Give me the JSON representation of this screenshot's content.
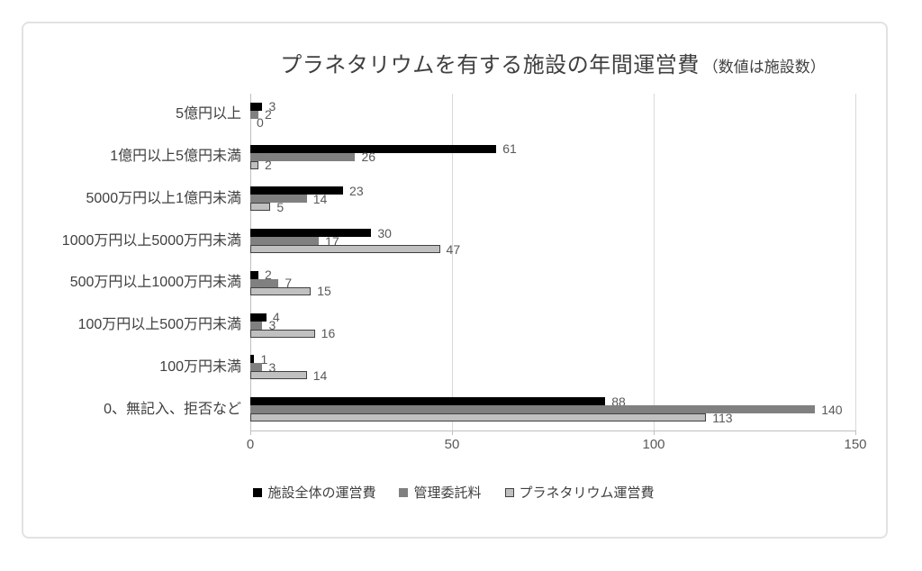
{
  "chart_data": {
    "type": "bar",
    "orientation": "horizontal",
    "title": "プラネタリウムを有する施設の年間運営費",
    "title_suffix": "（数値は施設数）",
    "categories": [
      "5億円以上",
      "1億円以上5億円未満",
      "5000万円以上1億円未満",
      "1000万円以上5000万円未満",
      "500万円以上1000万円未満",
      "100万円以上500万円未満",
      "100万円未満",
      "0、無記入、拒否など"
    ],
    "series": [
      {
        "name": "施設全体の運営費",
        "color": "#000000",
        "border": "#000000",
        "values": [
          3,
          61,
          23,
          30,
          2,
          4,
          1,
          88
        ]
      },
      {
        "name": "管理委託料",
        "color": "#808080",
        "border": "#808080",
        "values": [
          2,
          26,
          14,
          17,
          7,
          3,
          3,
          140
        ]
      },
      {
        "name": "プラネタリウム運営費",
        "color": "#c0c0c0",
        "border": "#404040",
        "values": [
          0,
          2,
          5,
          47,
          15,
          16,
          14,
          113
        ]
      }
    ],
    "xlim": [
      0,
      150
    ],
    "xticks": [
      0,
      50,
      100,
      150
    ],
    "grid": true,
    "data_labels_shown": true,
    "legend_position": "bottom",
    "colors": {
      "title": "#404040",
      "data_label": "#595959",
      "tick_label": "#595959",
      "category_label": "#404040",
      "gridline": "#d9d9d9",
      "axis_line": "#bfbfbf",
      "frame_border": "#e2e2e2"
    }
  }
}
